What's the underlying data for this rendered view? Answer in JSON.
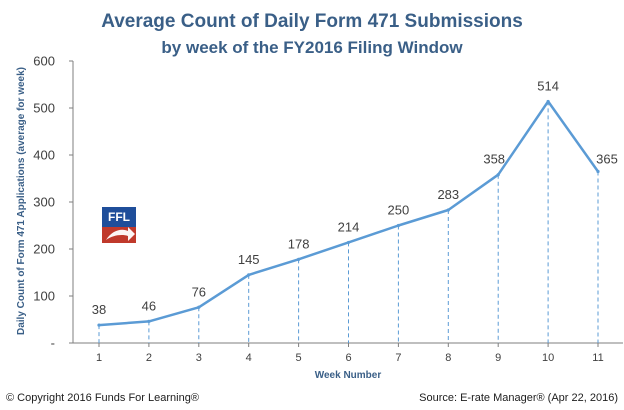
{
  "chart_data": {
    "type": "line",
    "title": "Average Count of Daily Form 471 Submissions",
    "subtitle": "by week of the FY2016 Filing Window",
    "xlabel": "Week Number",
    "ylabel": "Daily Count of Form 471 Applications (average for week)",
    "categories": [
      "1",
      "2",
      "3",
      "4",
      "5",
      "6",
      "7",
      "8",
      "9",
      "10",
      "11"
    ],
    "values": [
      38,
      46,
      76,
      145,
      178,
      214,
      250,
      283,
      358,
      514,
      365
    ],
    "data_labels": [
      "38",
      "46",
      "76",
      "145",
      "178",
      "214",
      "250",
      "283",
      "358",
      "514",
      "365"
    ],
    "ylim": [
      0,
      600
    ],
    "y_ticks": [
      {
        "value": 0,
        "label": "-"
      },
      {
        "value": 100,
        "label": "100"
      },
      {
        "value": 200,
        "label": "200"
      },
      {
        "value": 300,
        "label": "300"
      },
      {
        "value": 400,
        "label": "400"
      },
      {
        "value": 500,
        "label": "500"
      },
      {
        "value": 600,
        "label": "600"
      }
    ],
    "drop_lines": true,
    "grid": false,
    "line_color": "#5b9bd5",
    "drop_line_color": "#5b9bd5"
  },
  "logo": {
    "text": "FFL",
    "colors": {
      "top": "#1f4e9a",
      "band": "#c0392b",
      "arrow": "#ffffff"
    }
  },
  "footer": {
    "copyright": "© Copyright 2016 Funds For Learning®",
    "source": "Source: E-rate Manager® (Apr 22, 2016)"
  },
  "colors": {
    "title": "#3a5f87",
    "axis": "#7f7f7f",
    "text": "#404040"
  }
}
